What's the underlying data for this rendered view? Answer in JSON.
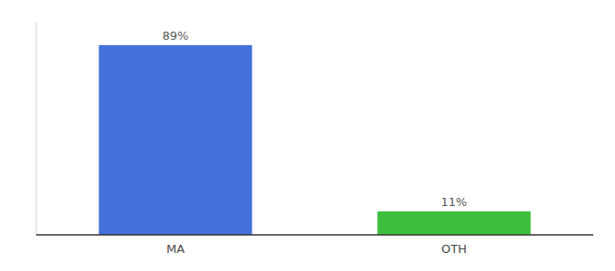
{
  "chart_data": {
    "type": "bar",
    "categories": [
      "MA",
      "OTH"
    ],
    "values": [
      89,
      11
    ],
    "value_labels": [
      "89%",
      "11%"
    ],
    "colors": [
      "#4472db",
      "#3dbf3d"
    ],
    "ylim": [
      0,
      100
    ],
    "data_labels": true,
    "tick_labels": "x"
  }
}
